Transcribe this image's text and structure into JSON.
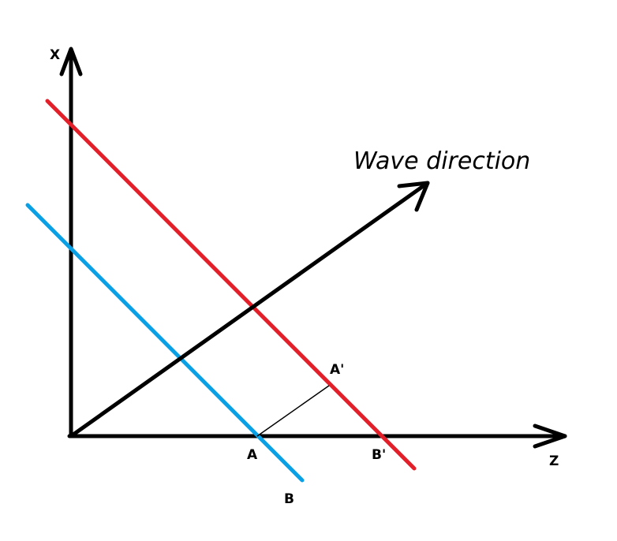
{
  "labels": {
    "x_axis": "X",
    "z_axis": "Z",
    "wave_direction": "Wave direction",
    "point_a": "A",
    "point_a_prime": "A'",
    "point_b": "B",
    "point_b_prime": "B'"
  },
  "colors": {
    "axes": "#000000",
    "wavefront_1": "#0aa0e6",
    "wavefront_2": "#e3202a",
    "wave_vector": "#000000",
    "connector": "#000000"
  }
}
